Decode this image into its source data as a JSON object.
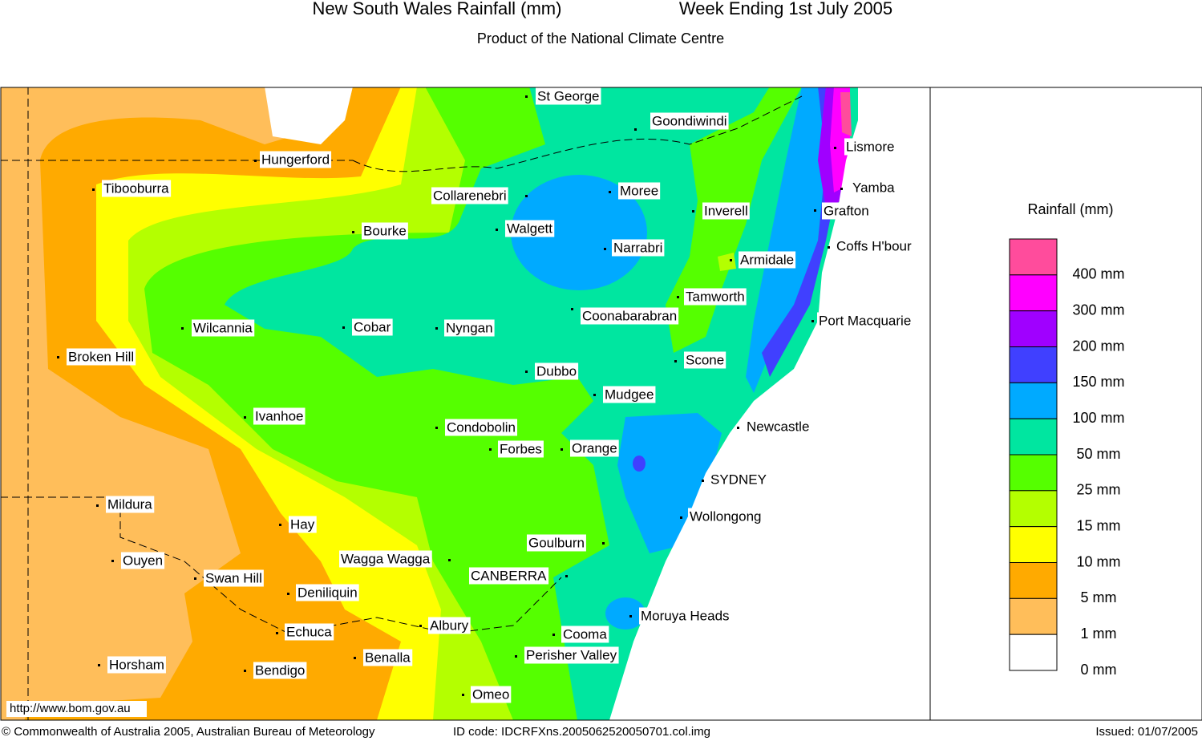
{
  "header": {
    "title": "New South Wales Rainfall (mm)",
    "period": "Week Ending 1st July 2005",
    "subtitle": "Product of the National Climate Centre"
  },
  "map": {
    "url": "http://www.bom.gov.au",
    "towns": [
      "St George",
      "Goondiwindi",
      "Hungerford",
      "Tibooburra",
      "Collarenebri",
      "Moree",
      "Inverell",
      "Lismore",
      "Yamba",
      "Grafton",
      "Bourke",
      "Walgett",
      "Narrabri",
      "Coffs H'bour",
      "Armidale",
      "Tamworth",
      "Port Macquarie",
      "Coonabarabran",
      "Wilcannia",
      "Cobar",
      "Nyngan",
      "Scone",
      "Broken Hill",
      "Dubbo",
      "Mudgee",
      "Ivanhoe",
      "Newcastle",
      "Condobolin",
      "Forbes",
      "Orange",
      "SYDNEY",
      "Mildura",
      "Wollongong",
      "Hay",
      "Goulburn",
      "Wagga Wagga",
      "Ouyen",
      "CANBERRA",
      "Swan Hill",
      "Deniliquin",
      "Moruya Heads",
      "Albury",
      "Echuca",
      "Cooma",
      "Perisher Valley",
      "Horsham",
      "Benalla",
      "Bendigo",
      "Omeo"
    ]
  },
  "legend": {
    "title": "Rainfall (mm)",
    "items": [
      {
        "label": "400 mm",
        "color": "#ff4c9c"
      },
      {
        "label": "300 mm",
        "color": "#ff00ff"
      },
      {
        "label": "200 mm",
        "color": "#a000ff"
      },
      {
        "label": "150 mm",
        "color": "#4040ff"
      },
      {
        "label": "100 mm",
        "color": "#00aaff"
      },
      {
        "label": "50 mm",
        "color": "#00e6a0"
      },
      {
        "label": "25 mm",
        "color": "#55ff00"
      },
      {
        "label": "15 mm",
        "color": "#b4ff00"
      },
      {
        "label": "10 mm",
        "color": "#ffff00"
      },
      {
        "label": "5 mm",
        "color": "#ffaa00"
      },
      {
        "label": "1 mm",
        "color": "#ffbe5a"
      },
      {
        "label": "0 mm",
        "color": "#ffffff"
      }
    ]
  },
  "footer": {
    "copyright": "© Commonwealth of Australia 2005, Australian Bureau of Meteorology",
    "id_code": "ID code: IDCRFXns.2005062520050701.col.img",
    "issued": "Issued: 01/07/2005"
  }
}
